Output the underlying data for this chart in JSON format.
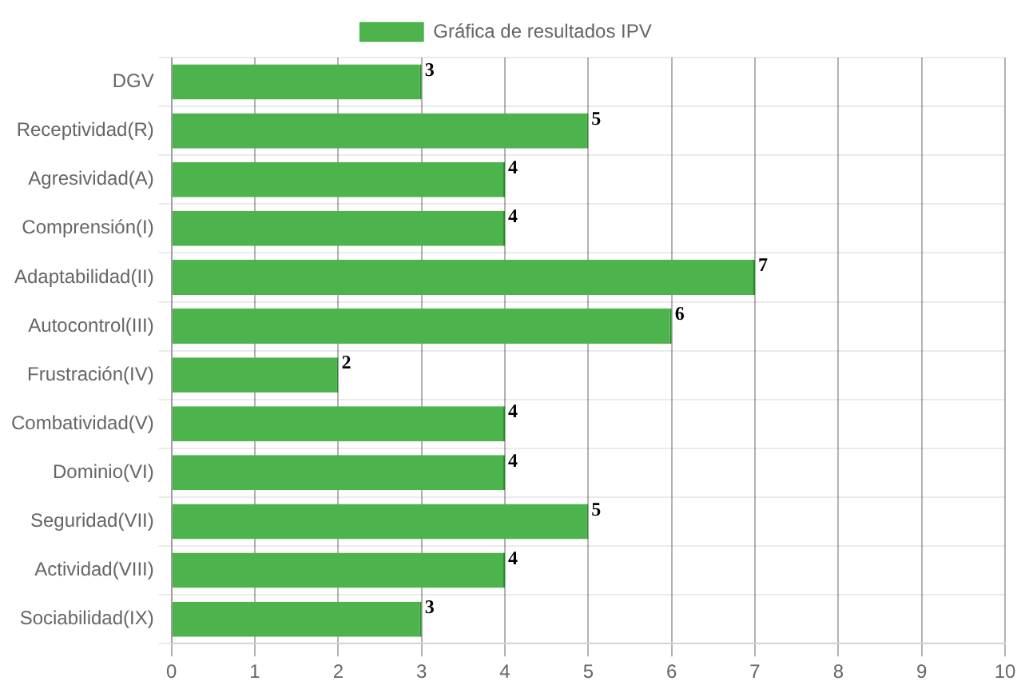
{
  "chart_data": {
    "type": "bar",
    "orientation": "horizontal",
    "categories": [
      "DGV",
      "Receptividad(R)",
      "Agresividad(A)",
      "Comprensión(I)",
      "Adaptabilidad(II)",
      "Autocontrol(III)",
      "Frustración(IV)",
      "Combatividad(V)",
      "Dominio(VI)",
      "Seguridad(VII)",
      "Actividad(VIII)",
      "Sociabilidad(IX)"
    ],
    "series": [
      {
        "name": "Gráfica de resultados IPV",
        "color": "#4db34d",
        "values": [
          3,
          5,
          4,
          4,
          7,
          6,
          2,
          4,
          4,
          5,
          4,
          3
        ]
      }
    ],
    "xlim": [
      0,
      10
    ],
    "xticks": [
      0,
      1,
      2,
      3,
      4,
      5,
      6,
      7,
      8,
      9,
      10
    ],
    "grid": true,
    "legend": "top",
    "data_labels": true
  }
}
